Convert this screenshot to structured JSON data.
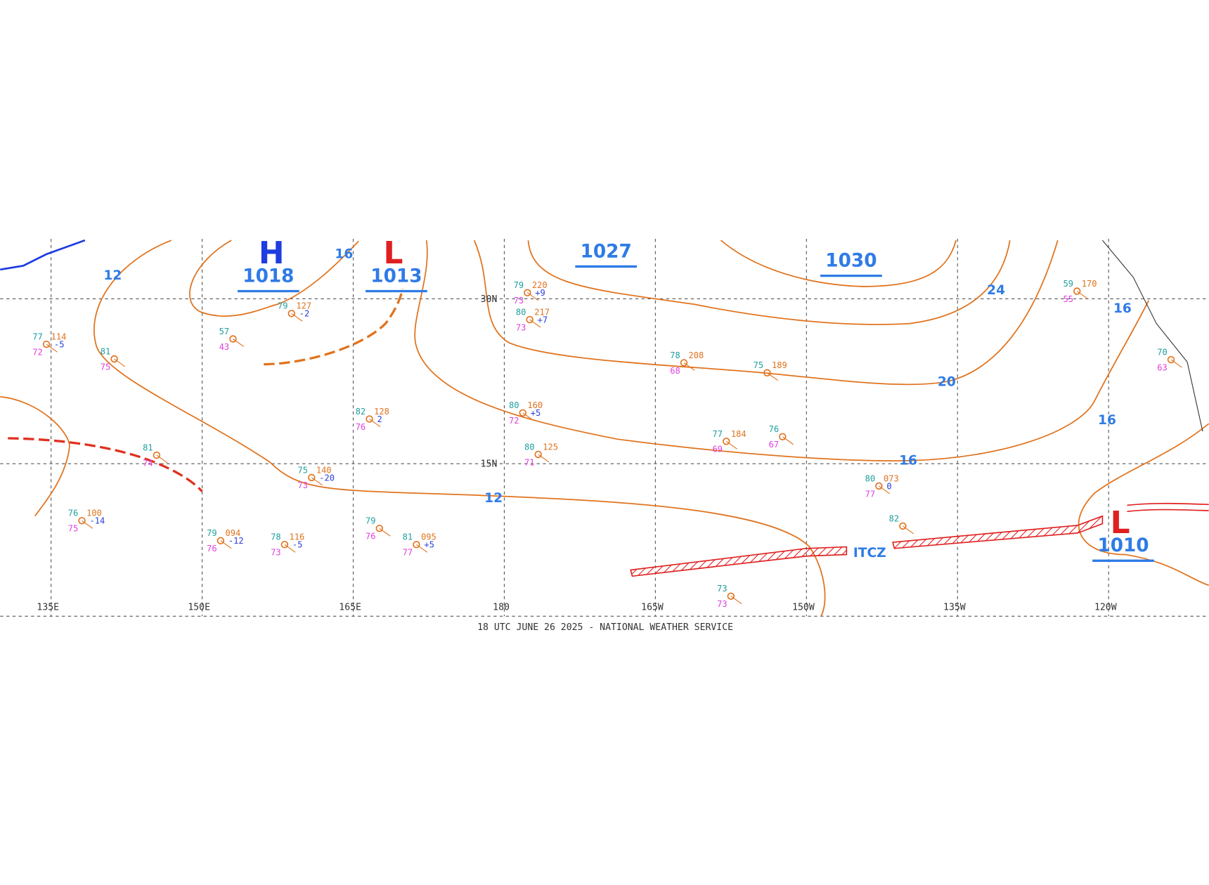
{
  "map": {
    "footer": "18 UTC JUNE 26 2025 - NATIONAL WEATHER SERVICE",
    "longitude_labels": [
      "135E",
      "150E",
      "165E",
      "180",
      "165W",
      "150W",
      "135W",
      "120W"
    ],
    "latitude_labels": [
      "30N",
      "15N"
    ],
    "pressure_centers": [
      {
        "symbol": "H",
        "value": "1018"
      },
      {
        "symbol": "L",
        "value": "1013"
      },
      {
        "value": "1027"
      },
      {
        "value": "1030"
      },
      {
        "symbol": "L",
        "value": "1010"
      }
    ],
    "isobar_labels": [
      "12",
      "16",
      "12",
      "16",
      "20",
      "24",
      "16",
      "16"
    ],
    "feature_label": "ITCZ",
    "stations": [
      {
        "temperature": "79",
        "pressure": "127",
        "tendency": "-2"
      },
      {
        "temperature": "57",
        "dewpoint": "43"
      },
      {
        "temperature": "81",
        "dewpoint": "75"
      },
      {
        "temperature": "77",
        "pressure": "114",
        "dewpoint": "72",
        "tendency": "-5"
      },
      {
        "temperature": "82",
        "pressure": "128",
        "dewpoint": "76",
        "tendency": "2"
      },
      {
        "temperature": "80",
        "pressure": "160",
        "dewpoint": "72",
        "tendency": "+5"
      },
      {
        "temperature": "80",
        "pressure": "125",
        "dewpoint": "71"
      },
      {
        "temperature": "75",
        "pressure": "140",
        "dewpoint": "73",
        "tendency": "-20"
      },
      {
        "temperature": "81",
        "dewpoint": "74"
      },
      {
        "temperature": "76",
        "pressure": "100",
        "dewpoint": "75",
        "tendency": "-14"
      },
      {
        "temperature": "79",
        "pressure": "094",
        "dewpoint": "76",
        "tendency": "-12"
      },
      {
        "temperature": "78",
        "pressure": "116",
        "dewpoint": "73",
        "tendency": "-5"
      },
      {
        "temperature": "79",
        "dewpoint": "76"
      },
      {
        "temperature": "81",
        "pressure": "095",
        "dewpoint": "77",
        "tendency": "+5"
      },
      {
        "temperature": "80",
        "pressure": "073",
        "dewpoint": "77",
        "tendency": "0"
      },
      {
        "temperature": "82"
      },
      {
        "temperature": "73",
        "dewpoint": "73"
      },
      {
        "temperature": "79",
        "pressure": "220",
        "dewpoint": "73",
        "tendency": "+9"
      },
      {
        "temperature": "80",
        "pressure": "217",
        "dewpoint": "73",
        "tendency": "+7"
      },
      {
        "temperature": "78",
        "pressure": "208",
        "dewpoint": "68"
      },
      {
        "temperature": "75",
        "pressure": "189"
      },
      {
        "temperature": "77",
        "pressure": "184",
        "dewpoint": "69"
      },
      {
        "temperature": "76",
        "dewpoint": "67"
      },
      {
        "temperature": "59",
        "pressure": "170",
        "dewpoint": "55"
      },
      {
        "temperature": "70",
        "dewpoint": "63"
      }
    ]
  }
}
